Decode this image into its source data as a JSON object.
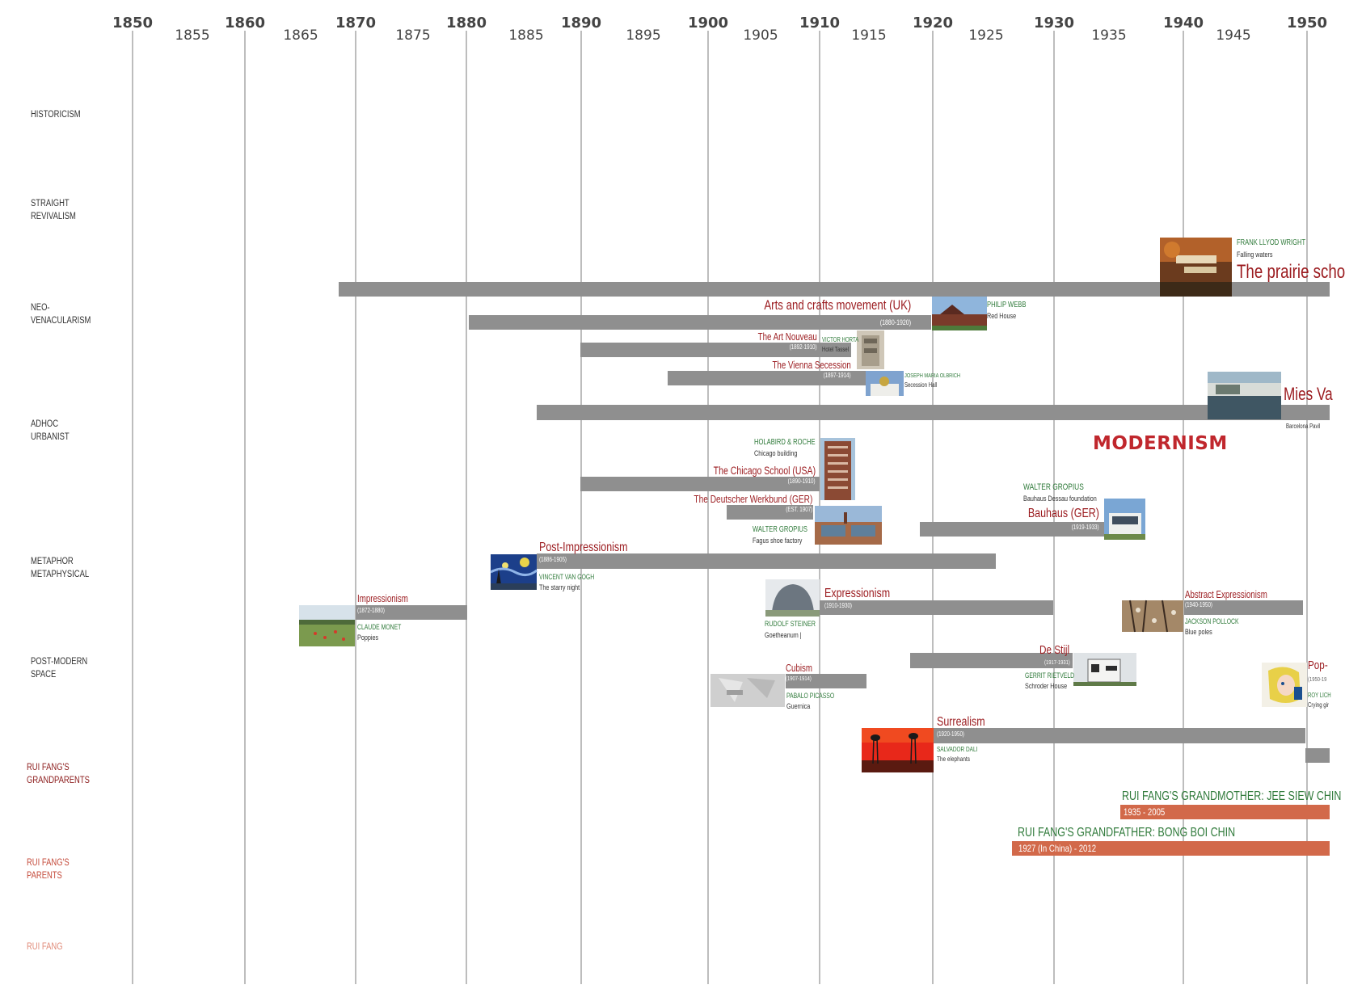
{
  "axis": {
    "decades": [
      "1850",
      "1860",
      "1870",
      "1880",
      "1890",
      "1900",
      "1910",
      "1920",
      "1930",
      "1940",
      "1950"
    ],
    "half_decades": [
      "1855",
      "1865",
      "1875",
      "1885",
      "1895",
      "1905",
      "1915",
      "1925",
      "1935",
      "1945"
    ]
  },
  "rows": [
    {
      "id": "historicism",
      "label": "HISTORICISM"
    },
    {
      "id": "straight",
      "label": "STRAIGHT\nREVIVALISM"
    },
    {
      "id": "neo",
      "label": "NEO-\nVENACULARISM"
    },
    {
      "id": "adhoc",
      "label": "ADHOC\nURBANIST"
    },
    {
      "id": "metaphor",
      "label": "METAPHOR\nMETAPHYSICAL"
    },
    {
      "id": "postmodern",
      "label": "POST-MODERN\nSPACE"
    },
    {
      "id": "grandparents",
      "label": "RUI FANG'S\nGRANDPARENTS"
    },
    {
      "id": "parents",
      "label": "RUI FANG'S\nPARENTS"
    },
    {
      "id": "self",
      "label": "RUI FANG"
    }
  ],
  "headline": "MODERNISM",
  "movements": {
    "prairie": {
      "title": "The prairie scho",
      "person": "FRANK LLYOD WRIGHT",
      "work": "Falling waters"
    },
    "arts_crafts": {
      "title": "Arts and crafts movement (UK)",
      "dates": "(1880-1920)",
      "person": "PHILIP WEBB",
      "work": "Red House"
    },
    "art_nouveau": {
      "title": "The Art Nouveau",
      "dates": "(1892-1910)",
      "person": "VICTOR HORTA",
      "work": "Hotel Tassel"
    },
    "vienna": {
      "title": "The Vienna Secession",
      "dates": "(1897-1914)",
      "person": "JOSEPH MARIA OLBRICH",
      "work": "Secession Hall"
    },
    "mies": {
      "title": "Mies Va",
      "work": "Barcelona Pavil"
    },
    "chicago": {
      "title": "The Chicago  School (USA)",
      "dates": "(1890-1910)",
      "person": "HOLABIRD & ROCHE",
      "work": "Chicago building"
    },
    "werkbund": {
      "title": "The Deutscher Werkbund (GER)",
      "dates": "(EST. 1907)",
      "person": "WALTER GROPIUS",
      "work": "Fagus shoe factory"
    },
    "bauhaus": {
      "title": "Bauhaus (GER)",
      "dates": "(1919-1933)",
      "person": "WALTER GROPIUS",
      "work": "Bauhaus Dessau foundation"
    },
    "post_impressionism": {
      "title": "Post-Impressionism",
      "dates": "(1886-1905)",
      "person": "VINCENT VAN GOGH",
      "work": "The starry night"
    },
    "impressionism": {
      "title": "Impressionism",
      "dates": "(1872-1880)",
      "person": "CLAUDE MONET",
      "work": "Poppies"
    },
    "expressionism": {
      "title": "Expressionism",
      "dates": "(1910-1930)",
      "person": "RUDOLF STEINER",
      "work": "Goetheanum |"
    },
    "abstract": {
      "title": "Abstract Expressionism",
      "dates": "(1940-1950)",
      "person": "JACKSON POLLOCK",
      "work": "Blue poles"
    },
    "destijl": {
      "title": "De Stijl",
      "dates": "(1917-1931)",
      "person": "GERRIT RIETVELD",
      "work": "Schroder House"
    },
    "cubism": {
      "title": "Cubism",
      "dates": "(1907-1914)",
      "person": "PABALO PICASSO",
      "work": "Guernica"
    },
    "pop": {
      "title": "Pop-",
      "dates": "(1950-19",
      "person": "ROY LICH",
      "work": "Crying gir"
    },
    "surrealism": {
      "title": "Surrealism",
      "dates": "(1920-1950)",
      "person": "SALVADOR DALI",
      "work": "The elephants"
    }
  },
  "family": {
    "grandmother": {
      "name": "RUI FANG'S GRANDMOTHER: JEE SIEW CHIN",
      "dates": "1935 - 2005"
    },
    "grandfather": {
      "name": "RUI FANG'S GRANDFATHER: BONG BOI CHIN",
      "dates": "1927 (In China) - 2012"
    }
  },
  "colors": {
    "bar": "#8f8f8f",
    "movement_title": "#9b1b1f",
    "person": "#2f7a3a",
    "family_bar": "#d2694a",
    "headline": "#c0272d",
    "grid": "#bdbdbd"
  }
}
